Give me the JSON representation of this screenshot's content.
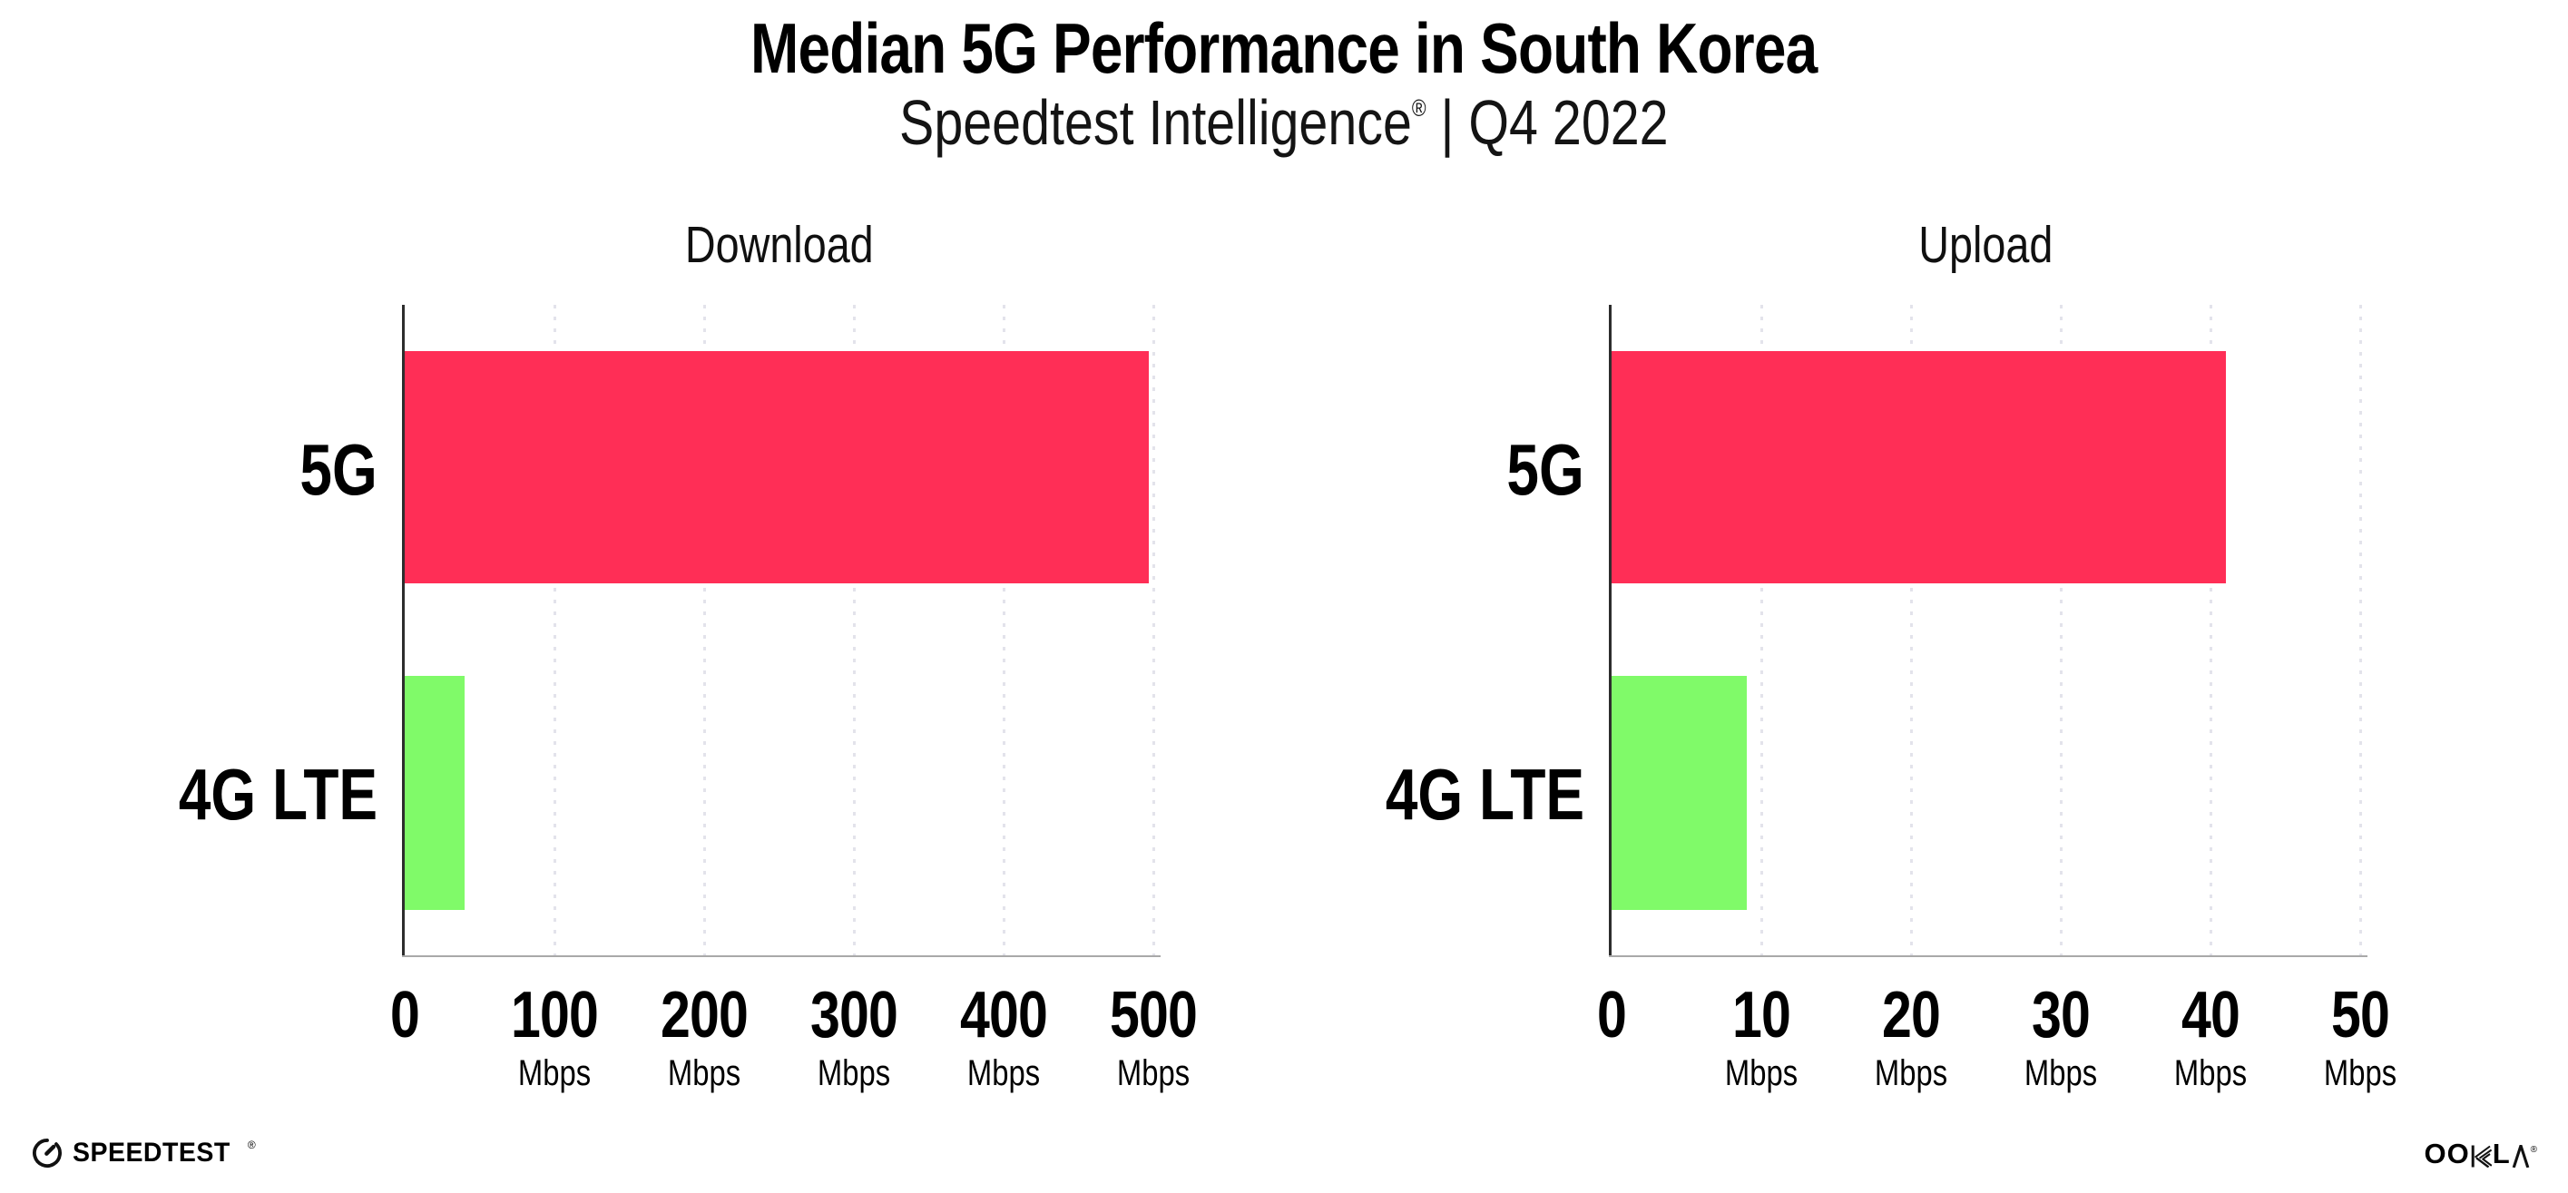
{
  "header": {
    "title": "Median 5G Performance in South Korea",
    "subtitle_brand": "Speedtest Intelligence",
    "subtitle_reg": "®",
    "subtitle_rest": " | Q4 2022"
  },
  "colors": {
    "bar_5g": "#FF2E56",
    "bar_4g": "#80FA69",
    "axis_y": "#2D2D2D",
    "axis_x": "#A9A9A9",
    "gridline": "#E3E3EB"
  },
  "chart_data": [
    {
      "type": "bar",
      "title": "Download",
      "orientation": "horizontal",
      "categories": [
        "5G",
        "4G LTE"
      ],
      "values": [
        497,
        40
      ],
      "unit": "Mbps",
      "xlim": [
        0,
        500
      ],
      "xticks": [
        0,
        100,
        200,
        300,
        400,
        500
      ],
      "tick_unit_label": "Mbps",
      "grid": "dotted-vertical-at-ticks",
      "legend": "none",
      "bar_colors": [
        "#FF2E56",
        "#80FA69"
      ]
    },
    {
      "type": "bar",
      "title": "Upload",
      "orientation": "horizontal",
      "categories": [
        "5G",
        "4G LTE"
      ],
      "values": [
        41,
        9
      ],
      "unit": "Mbps",
      "xlim": [
        0,
        50
      ],
      "xticks": [
        0,
        10,
        20,
        30,
        40,
        50
      ],
      "tick_unit_label": "Mbps",
      "grid": "dotted-vertical-at-ticks",
      "legend": "none",
      "bar_colors": [
        "#FF2E56",
        "#80FA69"
      ]
    }
  ],
  "footer": {
    "speedtest_label": "SPEEDTEST",
    "speedtest_reg": "®",
    "ookla_label": "OOKLA",
    "ookla_left": "OO",
    "ookla_l": "L",
    "ookla_reg": "®"
  }
}
